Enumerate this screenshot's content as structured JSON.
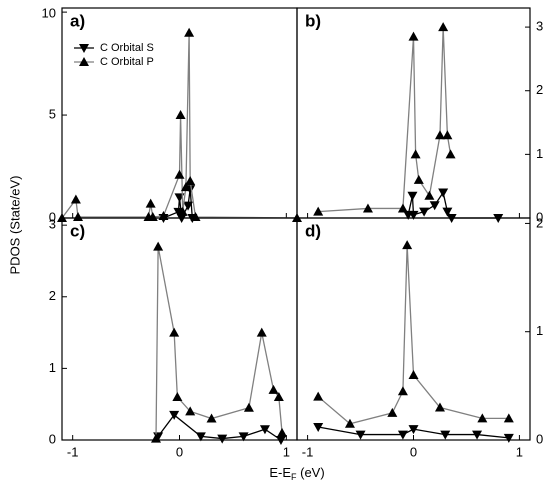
{
  "figure": {
    "ylabel": "PDOS (State/eV)",
    "xlabel": [
      "E-E",
      "F",
      " (eV)"
    ]
  },
  "chart_data": [
    {
      "type": "line",
      "label": "a)",
      "axis_side": "left",
      "xlim": [
        -1.1,
        1.1
      ],
      "xticks": [
        -1,
        0,
        1
      ],
      "ylim": [
        0,
        10.2
      ],
      "yticks": [
        0,
        5,
        10
      ],
      "legend": "upper left",
      "series": [
        {
          "name": "C Orbital S",
          "color": "#000000",
          "marker": "down",
          "x": [
            -0.15,
            -0.01,
            0.0,
            0.02,
            0.08,
            0.1,
            0.12
          ],
          "values": [
            0,
            0.3,
            1.0,
            0,
            0.6,
            1.4,
            0
          ]
        },
        {
          "name": "C Orbital P",
          "color": "#808080",
          "marker": "up",
          "x": [
            -1.1,
            -0.97,
            -0.95,
            -0.29,
            -0.27,
            -0.25,
            -0.15,
            0.0,
            0.01,
            0.03,
            0.06,
            0.09,
            0.1,
            0.15,
            1.1
          ],
          "values": [
            0,
            0.9,
            0.05,
            0.05,
            0.7,
            0.05,
            0.1,
            2.1,
            5.0,
            0.3,
            1.5,
            9.0,
            1.8,
            0.05,
            0
          ]
        }
      ]
    },
    {
      "type": "line",
      "label": "b)",
      "axis_side": "right",
      "xlim": [
        -1.1,
        1.1
      ],
      "xticks": [
        -1,
        0,
        1
      ],
      "ylim": [
        0,
        3.3
      ],
      "yticks": [
        0,
        1,
        2,
        3
      ],
      "series": [
        {
          "name": "C Orbital S",
          "color": "#000000",
          "marker": "down",
          "x": [
            -0.05,
            -0.01,
            0.0,
            0.1,
            0.2,
            0.28,
            0.32,
            0.36,
            0.8
          ],
          "values": [
            0.05,
            0.35,
            0.05,
            0.1,
            0.2,
            0.4,
            0.1,
            0,
            0
          ]
        },
        {
          "name": "C Orbital P",
          "color": "#808080",
          "marker": "up",
          "x": [
            -0.9,
            -0.43,
            -0.1,
            0.0,
            0.02,
            0.05,
            0.15,
            0.25,
            0.28,
            0.32,
            0.35
          ],
          "values": [
            0.1,
            0.15,
            0.15,
            2.85,
            1.0,
            0.6,
            0.35,
            1.3,
            3.0,
            1.3,
            1.0
          ]
        }
      ]
    },
    {
      "type": "line",
      "label": "c)",
      "axis_side": "left",
      "xlim": [
        -1.1,
        1.1
      ],
      "xticks": [
        -1,
        0,
        1
      ],
      "ylim": [
        0,
        3.1
      ],
      "yticks": [
        0,
        1,
        2,
        3
      ],
      "series": [
        {
          "name": "C Orbital S",
          "color": "#000000",
          "marker": "down",
          "x": [
            -0.2,
            -0.05,
            0.2,
            0.4,
            0.6,
            0.8,
            0.95
          ],
          "values": [
            0.05,
            0.35,
            0.05,
            0.02,
            0.05,
            0.15,
            0
          ]
        },
        {
          "name": "C Orbital P",
          "color": "#808080",
          "marker": "up",
          "x": [
            -0.22,
            -0.2,
            -0.05,
            -0.02,
            0.1,
            0.3,
            0.65,
            0.77,
            0.88,
            0.93,
            0.96
          ],
          "values": [
            0.02,
            2.7,
            1.5,
            0.6,
            0.4,
            0.3,
            0.45,
            1.5,
            0.7,
            0.6,
            0.1
          ]
        }
      ]
    },
    {
      "type": "line",
      "label": "d)",
      "axis_side": "right",
      "xlim": [
        -1.1,
        1.1
      ],
      "xticks": [
        -1,
        0,
        1
      ],
      "ylim": [
        0,
        2.05
      ],
      "yticks": [
        0,
        1,
        2
      ],
      "series": [
        {
          "name": "C Orbital S",
          "color": "#000000",
          "marker": "down",
          "x": [
            -0.9,
            -0.5,
            -0.1,
            0.0,
            0.3,
            0.6,
            0.9
          ],
          "values": [
            0.12,
            0.05,
            0.05,
            0.1,
            0.05,
            0.05,
            0.02
          ]
        },
        {
          "name": "C Orbital P",
          "color": "#808080",
          "marker": "up",
          "x": [
            -0.9,
            -0.6,
            -0.2,
            -0.1,
            -0.06,
            0.0,
            0.25,
            0.65,
            0.9
          ],
          "values": [
            0.4,
            0.15,
            0.25,
            0.45,
            1.8,
            0.6,
            0.3,
            0.2,
            0.2
          ]
        }
      ]
    }
  ]
}
